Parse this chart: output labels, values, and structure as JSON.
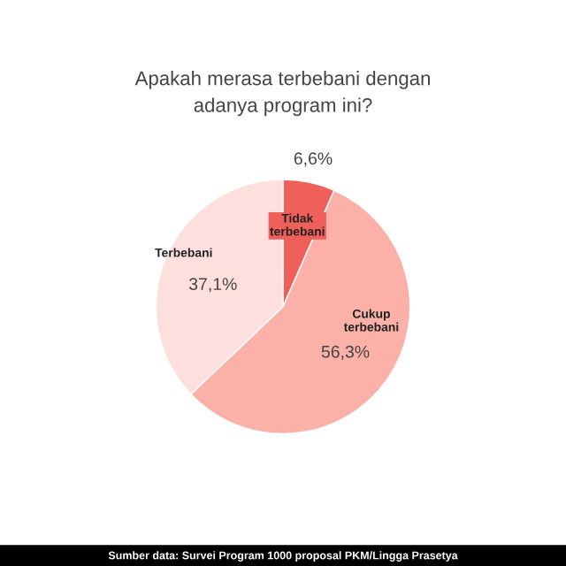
{
  "chart_data": {
    "type": "pie",
    "title": "Apakah merasa terbebani dengan\nadanya program ini?",
    "categories": [
      "Tidak\nterbebani",
      "Cukup\nterbebani",
      "Terbebani"
    ],
    "values": [
      6.6,
      56.3,
      37.1
    ],
    "value_labels": [
      "6,6%",
      "56,3%",
      "37,1%"
    ],
    "colors": [
      "#f0605a",
      "#fbb0a8",
      "#fde0de"
    ],
    "annotations": [
      "Sumber data: Survei Program 1000 proposal PKM/Lingga Prasetya"
    ]
  }
}
